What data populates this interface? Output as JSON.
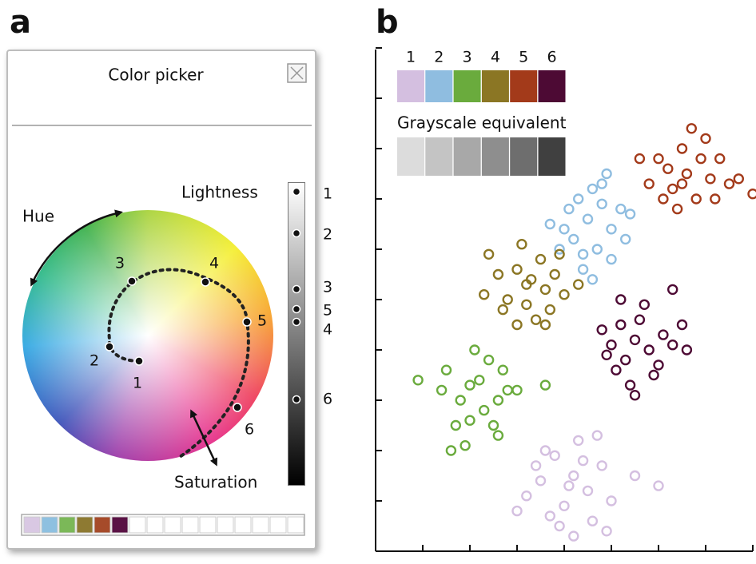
{
  "labels": {
    "panel_a": "a",
    "panel_b": "b"
  },
  "color_picker": {
    "title": "Color picker",
    "hue_label": "Hue",
    "lightness_label": "Lightness",
    "saturation_label": "Saturation",
    "wheel_labels": [
      "1",
      "2",
      "3",
      "4",
      "5",
      "6"
    ],
    "lightness_labels": [
      "1",
      "2",
      "3",
      "5",
      "4",
      "6"
    ],
    "swatch_colors": [
      "#d9c8e3",
      "#8ec0e0",
      "#7bb858",
      "#8e7a32",
      "#a64b2a",
      "#5a1245"
    ]
  },
  "chart_data": {
    "type": "scatter",
    "grayscale_label": "Grayscale equivalent",
    "xlim": [
      0,
      8
    ],
    "ylim": [
      0,
      10
    ],
    "xticks": [
      1,
      2,
      3,
      4,
      5,
      6,
      7,
      8
    ],
    "yticks": [
      1,
      2,
      3,
      4,
      5,
      6,
      7,
      8,
      9,
      10
    ],
    "series": [
      {
        "name": "1",
        "color": "#d4bfe0",
        "grayscale": "#dcdcdc",
        "x": [
          4.2,
          3.8,
          4.5,
          4.0,
          3.5,
          4.8,
          4.3,
          3.2,
          5.0,
          4.6,
          3.9,
          4.1,
          3.6,
          4.4,
          5.5,
          3.0,
          4.7,
          6.0,
          4.2,
          3.4,
          4.9,
          3.7
        ],
        "y": [
          1.5,
          1.9,
          1.2,
          0.9,
          1.4,
          1.7,
          2.2,
          1.1,
          1.0,
          0.6,
          0.5,
          1.3,
          2.0,
          1.8,
          1.5,
          0.8,
          2.3,
          1.3,
          0.3,
          1.7,
          0.4,
          0.7
        ]
      },
      {
        "name": "2",
        "color": "#8fbde0",
        "grayscale": "#c4c4c4",
        "x": [
          4.5,
          4.8,
          4.2,
          5.0,
          4.6,
          3.9,
          4.4,
          5.2,
          4.1,
          4.9,
          4.7,
          3.7,
          5.3,
          4.3,
          4.6,
          5.0,
          4.0,
          4.8,
          5.4,
          4.4
        ],
        "y": [
          6.6,
          6.9,
          6.2,
          6.4,
          7.2,
          6.0,
          5.9,
          6.8,
          6.8,
          7.5,
          6.0,
          6.5,
          6.2,
          7.0,
          5.4,
          5.8,
          6.4,
          7.3,
          6.7,
          5.6
        ]
      },
      {
        "name": "3",
        "color": "#6aab3d",
        "grayscale": "#a8a8a8",
        "x": [
          2.2,
          1.8,
          2.6,
          2.0,
          2.4,
          1.5,
          2.8,
          1.9,
          2.5,
          1.4,
          2.1,
          3.0,
          1.7,
          2.3,
          0.9,
          2.7,
          1.6,
          2.6,
          3.6,
          2.0
        ],
        "y": [
          3.4,
          3.0,
          3.0,
          2.6,
          3.8,
          3.6,
          3.2,
          2.1,
          2.5,
          3.2,
          4.0,
          3.2,
          2.5,
          2.8,
          3.4,
          3.6,
          2.0,
          2.3,
          3.3,
          3.3
        ]
      },
      {
        "name": "4",
        "color": "#8b7624",
        "grayscale": "#8e8e8e",
        "x": [
          3.3,
          3.0,
          3.6,
          2.8,
          3.5,
          3.2,
          3.8,
          2.6,
          3.4,
          3.1,
          4.0,
          2.4,
          3.7,
          3.2,
          2.3,
          3.9,
          3.0,
          3.6,
          4.3,
          2.7
        ],
        "y": [
          5.4,
          5.6,
          5.2,
          5.0,
          5.8,
          4.9,
          5.5,
          5.5,
          4.6,
          6.1,
          5.1,
          5.9,
          4.8,
          5.3,
          5.1,
          5.9,
          4.5,
          4.5,
          5.3,
          4.8
        ]
      },
      {
        "name": "5",
        "color": "#a33a1a",
        "grayscale": "#6e6e6e",
        "x": [
          6.6,
          6.9,
          6.3,
          7.1,
          6.5,
          6.0,
          7.3,
          6.8,
          6.2,
          7.5,
          6.4,
          5.8,
          7.0,
          6.7,
          7.7,
          5.6,
          6.1,
          7.2,
          8.0,
          6.5
        ],
        "y": [
          7.5,
          7.8,
          7.2,
          7.4,
          8.0,
          7.8,
          7.8,
          7.0,
          7.6,
          7.3,
          6.8,
          7.3,
          8.2,
          8.4,
          7.4,
          7.8,
          7.0,
          7.0,
          7.1,
          7.3
        ]
      },
      {
        "name": "6",
        "color": "#4d0a34",
        "grayscale": "#404040",
        "x": [
          5.5,
          5.2,
          5.8,
          5.0,
          5.6,
          6.1,
          5.3,
          5.9,
          4.8,
          6.3,
          5.4,
          5.7,
          6.5,
          5.1,
          6.0,
          5.5,
          6.3,
          5.2,
          4.9,
          6.6
        ],
        "y": [
          4.2,
          4.5,
          4.0,
          4.1,
          4.6,
          4.3,
          3.8,
          3.5,
          4.4,
          4.1,
          3.3,
          4.9,
          4.5,
          3.6,
          3.7,
          3.1,
          5.2,
          5.0,
          3.9,
          4.0
        ]
      }
    ]
  }
}
